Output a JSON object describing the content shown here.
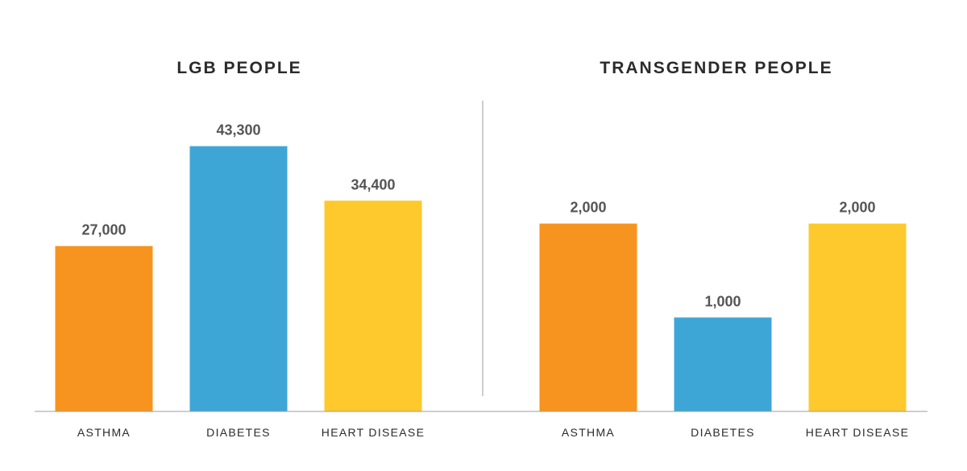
{
  "chart_data": [
    {
      "type": "bar",
      "title": "LGB PEOPLE",
      "categories": [
        "ASTHMA",
        "DIABETES",
        "HEART DISEASE"
      ],
      "values": [
        27000,
        43300,
        34400
      ],
      "value_labels": [
        "27,000",
        "43,300",
        "34,400"
      ],
      "colors": [
        "#f7941f",
        "#3ea6d6",
        "#fec92c"
      ],
      "ylim": [
        0,
        46000
      ],
      "grid": false
    },
    {
      "type": "bar",
      "title": "TRANSGENDER PEOPLE",
      "categories": [
        "ASTHMA",
        "DIABETES",
        "HEART DISEASE"
      ],
      "values": [
        2000,
        1000,
        2000
      ],
      "value_labels": [
        "2,000",
        "1,000",
        "2,000"
      ],
      "colors": [
        "#f7941f",
        "#3ea6d6",
        "#fec92c"
      ],
      "ylim": [
        0,
        3000
      ],
      "grid": false
    }
  ],
  "colors": {
    "axis": "#9e9e9e",
    "divider": "#9e9e9e"
  }
}
